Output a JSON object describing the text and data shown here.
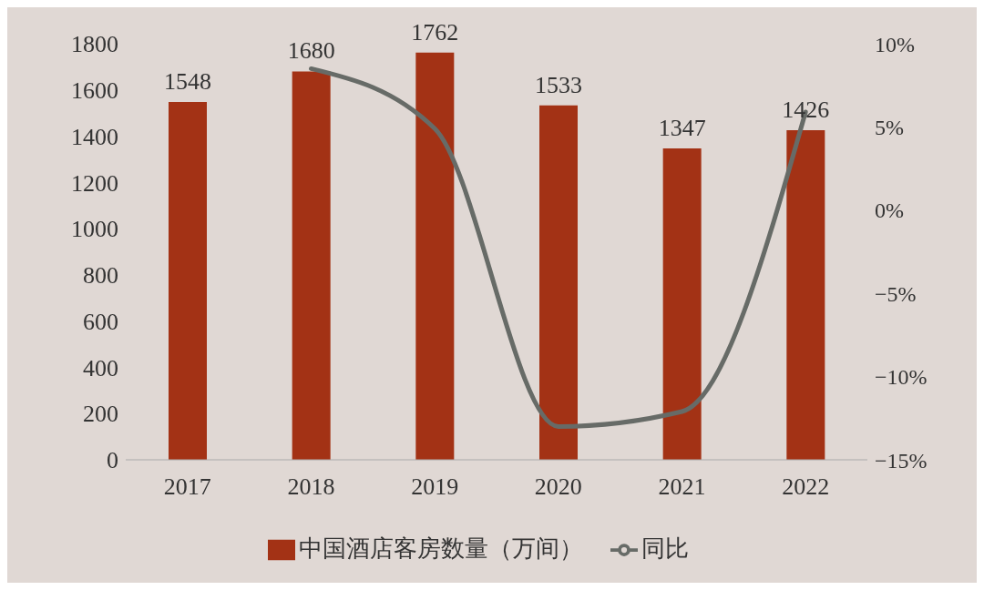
{
  "chart_data": {
    "type": "bar",
    "categories": [
      "2017",
      "2018",
      "2019",
      "2020",
      "2021",
      "2022"
    ],
    "series": [
      {
        "name": "中国酒店客房数量（万间）",
        "color": "#a33215",
        "values": [
          1548,
          1680,
          1762,
          1533,
          1347,
          1426
        ],
        "value_labels": [
          "1548",
          "1680",
          "1762",
          "1533",
          "1347",
          "1426"
        ]
      },
      {
        "name": "同比",
        "type": "line",
        "axis": "y2",
        "color": "#676b67",
        "values": [
          null,
          8.5,
          4.9,
          -13.0,
          -12.1,
          5.9
        ]
      }
    ],
    "ylim": [
      0,
      1800
    ],
    "yticks": [
      0,
      200,
      400,
      600,
      800,
      1000,
      1200,
      1400,
      1600,
      1800
    ],
    "y2lim": [
      -15,
      10
    ],
    "y2ticks": [
      {
        "value": -15,
        "label": "−15%"
      },
      {
        "value": -10,
        "label": "−10%"
      },
      {
        "value": -5,
        "label": "−5%"
      },
      {
        "value": 0,
        "label": "0%"
      },
      {
        "value": 5,
        "label": "5%"
      },
      {
        "value": 10,
        "label": "10%"
      }
    ],
    "grid": false,
    "legend": "bottom",
    "marker": "none",
    "line_style": "solid"
  }
}
